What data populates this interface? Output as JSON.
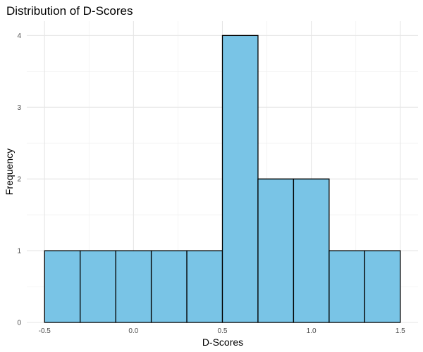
{
  "chart_data": {
    "type": "bar",
    "title": "Distribution of D-Scores",
    "xlabel": "D-Scores",
    "ylabel": "Frequency",
    "bins": [
      {
        "start": -0.5,
        "end": -0.3,
        "count": 1
      },
      {
        "start": -0.3,
        "end": -0.1,
        "count": 1
      },
      {
        "start": -0.1,
        "end": 0.1,
        "count": 1
      },
      {
        "start": 0.1,
        "end": 0.3,
        "count": 1
      },
      {
        "start": 0.3,
        "end": 0.5,
        "count": 1
      },
      {
        "start": 0.5,
        "end": 0.7,
        "count": 4
      },
      {
        "start": 0.7,
        "end": 0.9,
        "count": 2
      },
      {
        "start": 0.9,
        "end": 1.1,
        "count": 2
      },
      {
        "start": 1.1,
        "end": 1.3,
        "count": 1
      },
      {
        "start": 1.3,
        "end": 1.5,
        "count": 1
      }
    ],
    "x_ticks": [
      {
        "value": -0.5,
        "label": "-0.5"
      },
      {
        "value": 0.0,
        "label": "0.0"
      },
      {
        "value": 0.5,
        "label": "0.5"
      },
      {
        "value": 1.0,
        "label": "1.0"
      },
      {
        "value": 1.5,
        "label": "1.5"
      }
    ],
    "y_ticks": [
      {
        "value": 0,
        "label": "0"
      },
      {
        "value": 1,
        "label": "1"
      },
      {
        "value": 2,
        "label": "2"
      },
      {
        "value": 3,
        "label": "3"
      },
      {
        "value": 4,
        "label": "4"
      }
    ],
    "xlim": [
      -0.6,
      1.6
    ],
    "ylim": [
      0,
      4.2
    ],
    "bar_color": "#79C4E6",
    "bar_border_color": "#000000",
    "grid": true,
    "legend": "none"
  }
}
